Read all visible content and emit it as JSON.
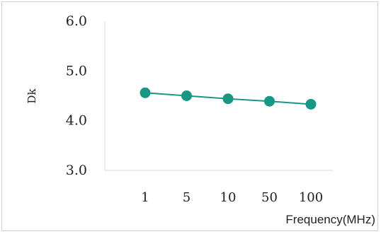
{
  "chart_data": {
    "type": "line",
    "title": "",
    "xlabel": "Frequency(MHz)",
    "ylabel": "Dk",
    "categories": [
      "1",
      "5",
      "10",
      "50",
      "100"
    ],
    "y_tick_labels": [
      "6.0",
      "5.0",
      "4.0",
      "3.0"
    ],
    "ylim": [
      3.0,
      6.0
    ],
    "grid": false,
    "legend": "none",
    "series": [
      {
        "values": [
          4.56,
          4.5,
          4.44,
          4.39,
          4.33
        ],
        "color": "#179784",
        "marker": "circle"
      }
    ]
  }
}
